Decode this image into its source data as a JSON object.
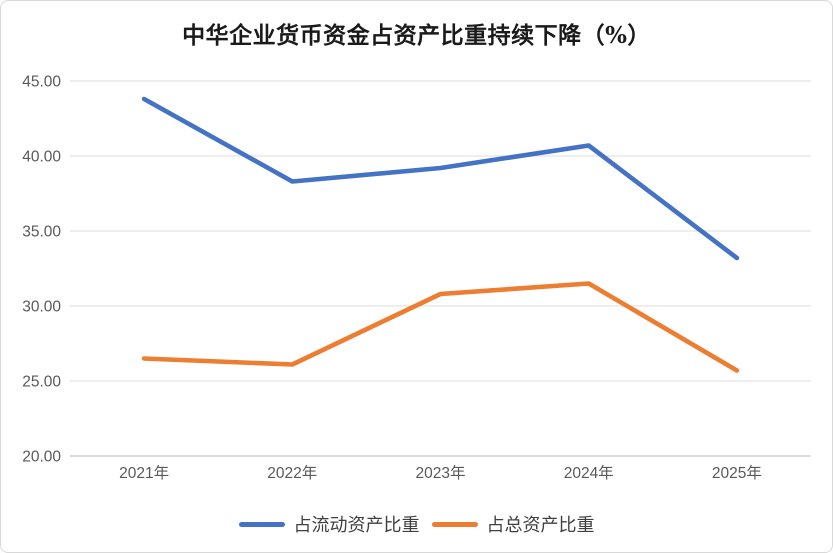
{
  "chart_data": {
    "type": "line",
    "title": "中华企业货币资金占资产比重持续下降（%）",
    "categories": [
      "2021年",
      "2022年",
      "2023年",
      "2024年",
      "2025年"
    ],
    "series": [
      {
        "name": "占流动资产比重",
        "color": "#4472C4",
        "values": [
          43.8,
          38.3,
          39.2,
          40.7,
          33.2
        ]
      },
      {
        "name": "占总资产比重",
        "color": "#ED7D31",
        "values": [
          26.5,
          26.1,
          30.8,
          31.5,
          25.7
        ]
      }
    ],
    "ylim": [
      20,
      45
    ],
    "yticks": [
      {
        "value": 20,
        "label": "20.00"
      },
      {
        "value": 25,
        "label": "25.00"
      },
      {
        "value": 30,
        "label": "30.00"
      },
      {
        "value": 35,
        "label": "35.00"
      },
      {
        "value": 40,
        "label": "40.00"
      },
      {
        "value": 45,
        "label": "45.00"
      }
    ],
    "grid": true,
    "legend_position": "bottom-center",
    "axis_label_color": "#595959",
    "legend_text_color": "#3f3f3f",
    "gridline_color": "#e3e3e3",
    "axis_line_color": "#c6c6c6",
    "title_color": "#1a1a1a",
    "background_color": "#ffffff",
    "frame_border_color": "#d8d8d8"
  }
}
